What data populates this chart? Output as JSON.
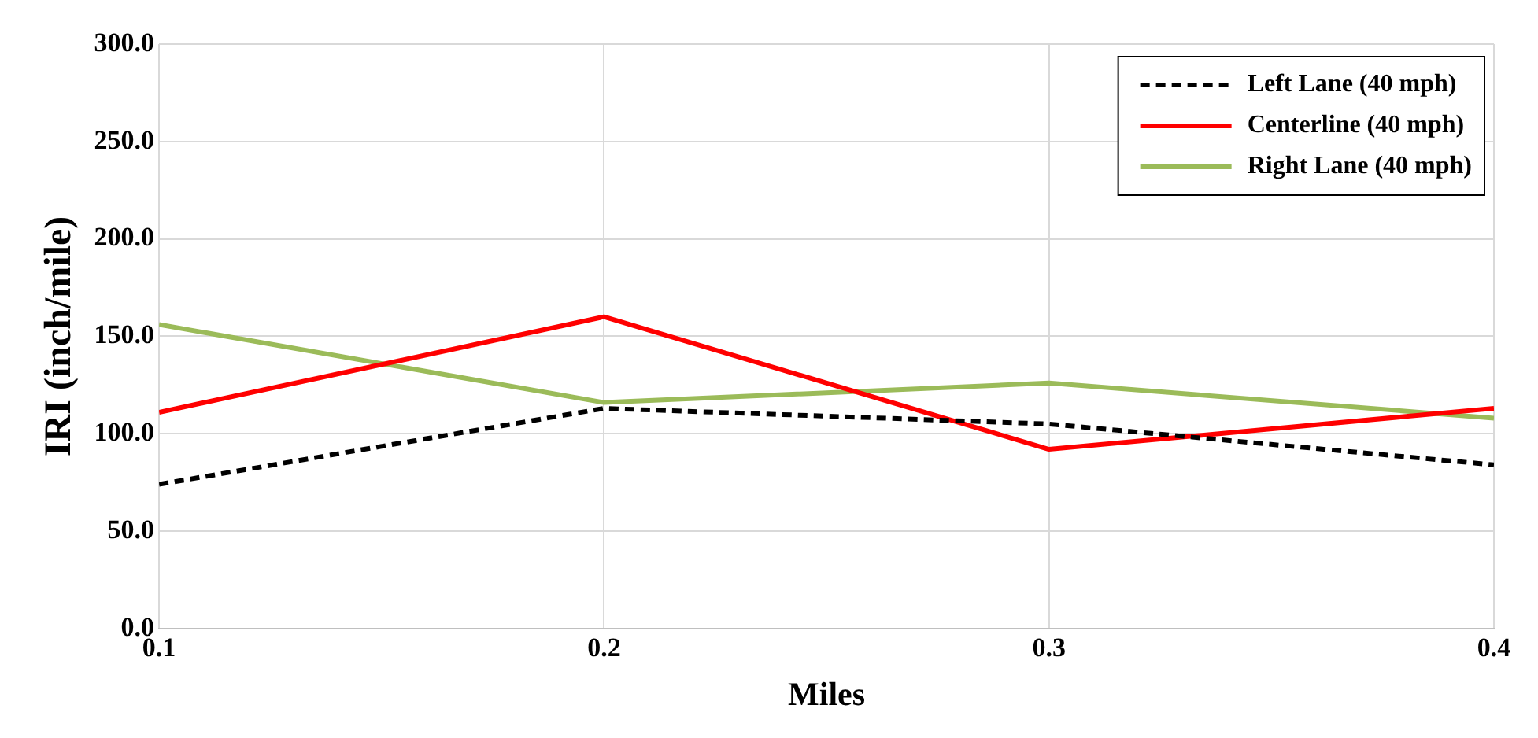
{
  "chart_data": {
    "type": "line",
    "xlabel": "Miles",
    "ylabel": "IRI (inch/mile)",
    "x": [
      0.1,
      0.2,
      0.3,
      0.4
    ],
    "series": [
      {
        "name": "Left Lane (40 mph)",
        "color": "#000000",
        "line_style": "dashed",
        "values": [
          74,
          113,
          105,
          84
        ]
      },
      {
        "name": "Centerline (40 mph)",
        "color": "#ff0000",
        "values": [
          111,
          160,
          92,
          113
        ]
      },
      {
        "name": "Right Lane (40 mph)",
        "color": "#9bbb59",
        "values": [
          156,
          116,
          126,
          108
        ]
      }
    ],
    "xlim": [
      0.1,
      0.4
    ],
    "xticks": [
      0.1,
      0.2,
      0.3,
      0.4
    ],
    "ylim": [
      0,
      300
    ],
    "yticks": [
      {
        "value": 0,
        "label": "0.0"
      },
      {
        "value": 50,
        "label": "50.0"
      },
      {
        "value": 100,
        "label": "100.0"
      },
      {
        "value": 150,
        "label": "150.0"
      },
      {
        "value": 200,
        "label": "200.0"
      },
      {
        "value": 250,
        "label": "250.0"
      },
      {
        "value": 300,
        "label": "300.0"
      }
    ],
    "grid": true,
    "legend": "top right",
    "marker": "none"
  }
}
